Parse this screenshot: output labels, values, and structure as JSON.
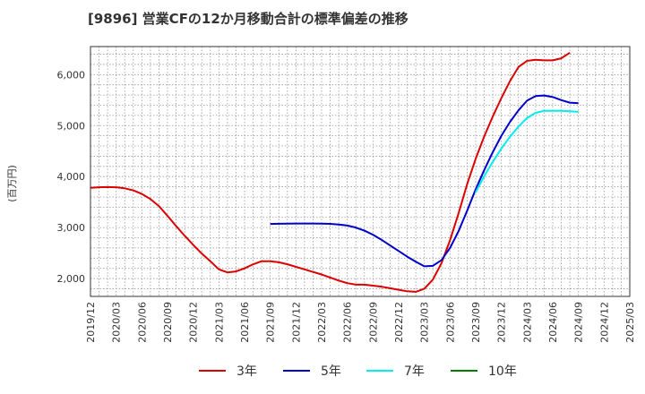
{
  "title": "[9896]  営業CFの12か月移動合計の標準偏差の推移",
  "chart_data": {
    "type": "line",
    "title": "[9896]  営業CFの12か月移動合計の標準偏差の推移",
    "ylabel": "(百万円)",
    "xlabel": "",
    "ylim": [
      1650,
      6550
    ],
    "y_ticks": [
      2000,
      3000,
      4000,
      5000,
      6000
    ],
    "y_tick_labels": [
      "2,000",
      "3,000",
      "4,000",
      "5,000",
      "6,000"
    ],
    "x_tick_labels": [
      "2019/12",
      "2020/03",
      "2020/06",
      "2020/09",
      "2020/12",
      "2021/03",
      "2021/06",
      "2021/09",
      "2021/12",
      "2022/03",
      "2022/06",
      "2022/09",
      "2022/12",
      "2023/03",
      "2023/06",
      "2023/09",
      "2023/12",
      "2024/03",
      "2024/06",
      "2024/09",
      "2024/12",
      "2025/03"
    ],
    "grid": true,
    "legend_position": "bottom",
    "series": [
      {
        "name": "3年",
        "color": "#dd0000",
        "start_index": 0,
        "values": [
          3780,
          3790,
          3795,
          3790,
          3770,
          3730,
          3660,
          3560,
          3420,
          3230,
          3030,
          2840,
          2660,
          2490,
          2340,
          2180,
          2120,
          2140,
          2200,
          2280,
          2340,
          2340,
          2320,
          2280,
          2230,
          2180,
          2130,
          2080,
          2020,
          1960,
          1910,
          1880,
          1880,
          1860,
          1840,
          1810,
          1780,
          1750,
          1740,
          1800,
          1980,
          2300,
          2750,
          3280,
          3850,
          4350,
          4790,
          5180,
          5540,
          5870,
          6150,
          6270,
          6290,
          6280,
          6280,
          6320,
          6430
        ]
      },
      {
        "name": "5年",
        "color": "#0000cc",
        "start_index": 21,
        "values": [
          3070,
          3075,
          3078,
          3080,
          3080,
          3080,
          3078,
          3072,
          3060,
          3040,
          3000,
          2940,
          2860,
          2760,
          2650,
          2540,
          2430,
          2330,
          2240,
          2250,
          2360,
          2600,
          2930,
          3330,
          3750,
          4130,
          4480,
          4800,
          5070,
          5300,
          5490,
          5580,
          5590,
          5560,
          5500,
          5450,
          5440
        ]
      },
      {
        "name": "7年",
        "color": "#00eeee",
        "start_index": 45,
        "values": [
          3690,
          4010,
          4290,
          4550,
          4780,
          4980,
          5150,
          5250,
          5290,
          5290,
          5290,
          5280,
          5270
        ]
      },
      {
        "name": "10年",
        "color": "#008000",
        "start_index": 0,
        "values": []
      }
    ]
  }
}
